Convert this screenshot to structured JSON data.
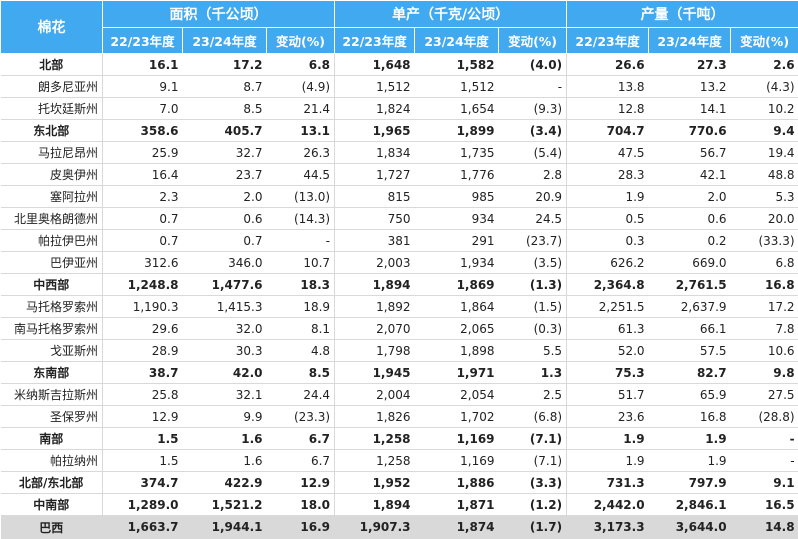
{
  "header": {
    "region": "棉花",
    "groups": [
      "面积（千公顷）",
      "单产（千克/公顷）",
      "产量（千吨）"
    ],
    "subcols": [
      "22/23年度",
      "23/24年度",
      "变动(%)"
    ]
  },
  "rows": [
    {
      "bold": true,
      "name": "北部",
      "v": [
        "16.1",
        "17.2",
        "6.8",
        "1,648",
        "1,582",
        "(4.0)",
        "26.6",
        "27.3",
        "2.6"
      ]
    },
    {
      "bold": false,
      "name": "朗多尼亚州",
      "v": [
        "9.1",
        "8.7",
        "(4.9)",
        "1,512",
        "1,512",
        "-",
        "13.8",
        "13.2",
        "(4.3)"
      ]
    },
    {
      "bold": false,
      "name": "托坎廷斯州",
      "v": [
        "7.0",
        "8.5",
        "21.4",
        "1,824",
        "1,654",
        "(9.3)",
        "12.8",
        "14.1",
        "10.2"
      ]
    },
    {
      "bold": true,
      "name": "东北部",
      "v": [
        "358.6",
        "405.7",
        "13.1",
        "1,965",
        "1,899",
        "(3.4)",
        "704.7",
        "770.6",
        "9.4"
      ]
    },
    {
      "bold": false,
      "name": "马拉尼昂州",
      "v": [
        "25.9",
        "32.7",
        "26.3",
        "1,834",
        "1,735",
        "(5.4)",
        "47.5",
        "56.7",
        "19.4"
      ]
    },
    {
      "bold": false,
      "name": "皮奥伊州",
      "v": [
        "16.4",
        "23.7",
        "44.5",
        "1,727",
        "1,776",
        "2.8",
        "28.3",
        "42.1",
        "48.8"
      ]
    },
    {
      "bold": false,
      "name": "塞阿拉州",
      "v": [
        "2.3",
        "2.0",
        "(13.0)",
        "815",
        "985",
        "20.9",
        "1.9",
        "2.0",
        "5.3"
      ]
    },
    {
      "bold": false,
      "name": "北里奥格朗德州",
      "v": [
        "0.7",
        "0.6",
        "(14.3)",
        "750",
        "934",
        "24.5",
        "0.5",
        "0.6",
        "20.0"
      ]
    },
    {
      "bold": false,
      "name": "帕拉伊巴州",
      "v": [
        "0.7",
        "0.7",
        "-",
        "381",
        "291",
        "(23.7)",
        "0.3",
        "0.2",
        "(33.3)"
      ]
    },
    {
      "bold": false,
      "name": "巴伊亚州",
      "v": [
        "312.6",
        "346.0",
        "10.7",
        "2,003",
        "1,934",
        "(3.5)",
        "626.2",
        "669.0",
        "6.8"
      ]
    },
    {
      "bold": true,
      "name": "中西部",
      "v": [
        "1,248.8",
        "1,477.6",
        "18.3",
        "1,894",
        "1,869",
        "(1.3)",
        "2,364.8",
        "2,761.5",
        "16.8"
      ]
    },
    {
      "bold": false,
      "name": "马托格罗索州",
      "v": [
        "1,190.3",
        "1,415.3",
        "18.9",
        "1,892",
        "1,864",
        "(1.5)",
        "2,251.5",
        "2,637.9",
        "17.2"
      ]
    },
    {
      "bold": false,
      "name": "南马托格罗索州",
      "v": [
        "29.6",
        "32.0",
        "8.1",
        "2,070",
        "2,065",
        "(0.3)",
        "61.3",
        "66.1",
        "7.8"
      ]
    },
    {
      "bold": false,
      "name": "戈亚斯州",
      "v": [
        "28.9",
        "30.3",
        "4.8",
        "1,798",
        "1,898",
        "5.5",
        "52.0",
        "57.5",
        "10.6"
      ]
    },
    {
      "bold": true,
      "name": "东南部",
      "v": [
        "38.7",
        "42.0",
        "8.5",
        "1,945",
        "1,971",
        "1.3",
        "75.3",
        "82.7",
        "9.8"
      ]
    },
    {
      "bold": false,
      "name": "米纳斯吉拉斯州",
      "v": [
        "25.8",
        "32.1",
        "24.4",
        "2,004",
        "2,054",
        "2.5",
        "51.7",
        "65.9",
        "27.5"
      ]
    },
    {
      "bold": false,
      "name": "圣保罗州",
      "v": [
        "12.9",
        "9.9",
        "(23.3)",
        "1,826",
        "1,702",
        "(6.8)",
        "23.6",
        "16.8",
        "(28.8)"
      ]
    },
    {
      "bold": true,
      "name": "南部",
      "v": [
        "1.5",
        "1.6",
        "6.7",
        "1,258",
        "1,169",
        "(7.1)",
        "1.9",
        "1.9",
        "-"
      ]
    },
    {
      "bold": false,
      "name": "帕拉纳州",
      "v": [
        "1.5",
        "1.6",
        "6.7",
        "1,258",
        "1,169",
        "(7.1)",
        "1.9",
        "1.9",
        "-"
      ]
    },
    {
      "bold": true,
      "name": "北部/东北部",
      "v": [
        "374.7",
        "422.9",
        "12.9",
        "1,952",
        "1,886",
        "(3.3)",
        "731.3",
        "797.9",
        "9.1"
      ]
    },
    {
      "bold": true,
      "name": "中南部",
      "v": [
        "1,289.0",
        "1,521.2",
        "18.0",
        "1,894",
        "1,871",
        "(1.2)",
        "2,442.0",
        "2,846.1",
        "16.5"
      ]
    }
  ],
  "total": {
    "name": "巴西",
    "v": [
      "1,663.7",
      "1,944.1",
      "16.9",
      "1,907.3",
      "1,874",
      "(1.7)",
      "3,173.3",
      "3,644.0",
      "14.8"
    ]
  },
  "colors": {
    "header_bg": "#41a9ef",
    "header_text": "#ffffff",
    "total_bg": "#d9d9d9",
    "divider": "#d9d9d9"
  }
}
